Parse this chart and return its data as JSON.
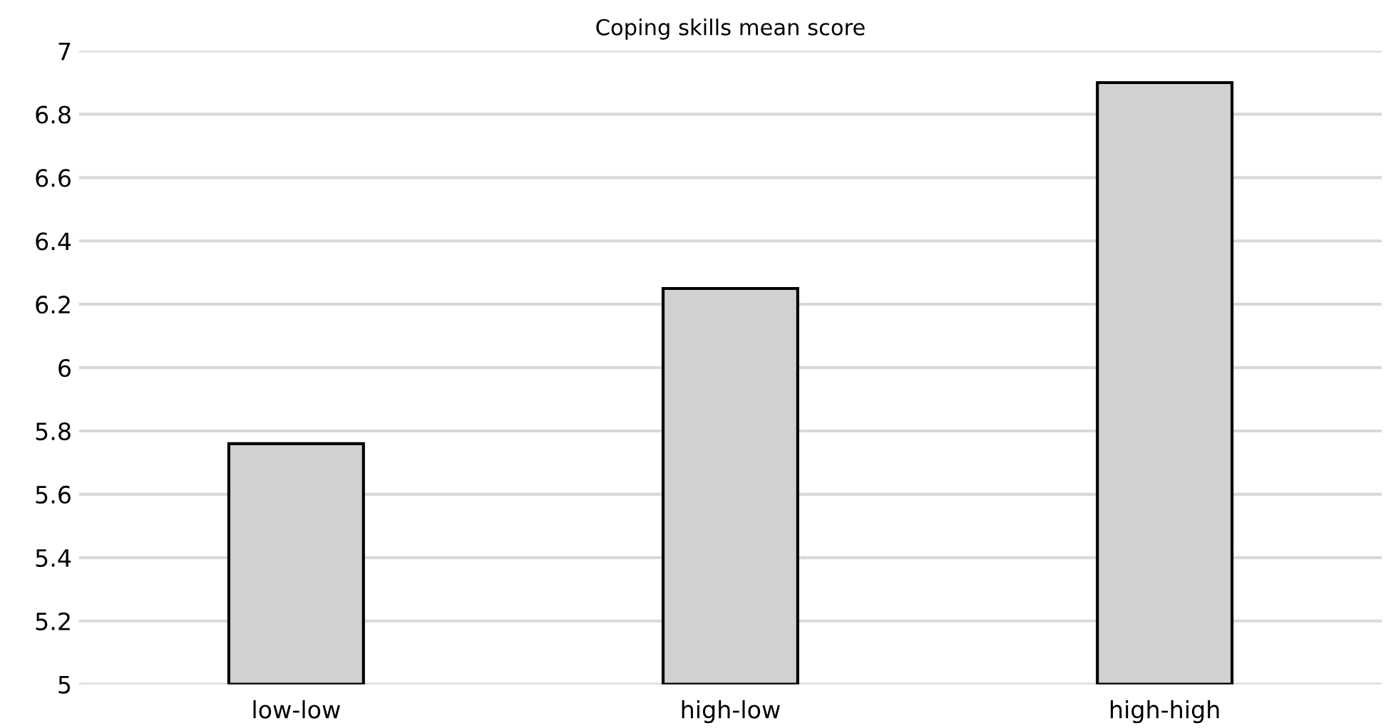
{
  "chart_data": {
    "type": "bar",
    "title": "Coping skills mean score",
    "categories": [
      "low-low",
      "high-low",
      "high-high"
    ],
    "values": [
      5.76,
      6.25,
      6.9
    ],
    "color": "#d0d2d1",
    "ylim": [
      5,
      7
    ],
    "yticks": [
      5,
      {
        "value": 5.2,
        "label": "5.2"
      },
      {
        "value": 5.4,
        "label": "5.4"
      },
      {
        "value": 5.6,
        "label": "5.6"
      },
      {
        "value": 5.8,
        "label": "5.8"
      },
      6,
      {
        "value": 6.2,
        "label": "6.2"
      },
      {
        "value": 6.4,
        "label": "6.4"
      },
      {
        "value": 6.6,
        "label": "6.6"
      },
      {
        "value": 6.8,
        "label": "6.8"
      },
      7
    ],
    "grid": "y"
  }
}
